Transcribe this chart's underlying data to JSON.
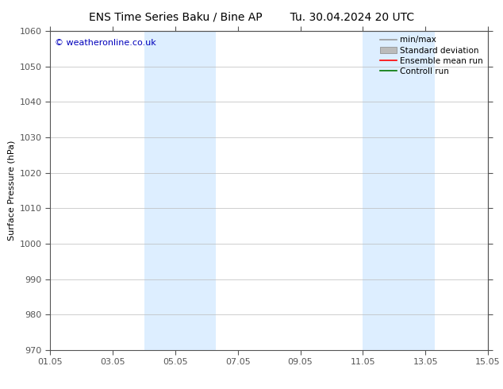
{
  "title_left": "ENS Time Series Baku / Bine AP",
  "title_right": "Tu. 30.04.2024 20 UTC",
  "ylabel": "Surface Pressure (hPa)",
  "ylim": [
    970,
    1060
  ],
  "yticks": [
    970,
    980,
    990,
    1000,
    1010,
    1020,
    1030,
    1040,
    1050,
    1060
  ],
  "xlim": [
    0,
    14
  ],
  "xtick_labels": [
    "01.05",
    "03.05",
    "05.05",
    "07.05",
    "09.05",
    "11.05",
    "13.05",
    "15.05"
  ],
  "xtick_positions": [
    0,
    2,
    4,
    6,
    8,
    10,
    12,
    14
  ],
  "shaded_bands": [
    {
      "x_start": 3.0,
      "x_end": 5.3
    },
    {
      "x_start": 10.0,
      "x_end": 12.3
    }
  ],
  "shaded_color": "#ddeeff",
  "watermark_text": "© weatheronline.co.uk",
  "watermark_color": "#0000bb",
  "bg_color": "#ffffff",
  "spine_color": "#555555",
  "tick_color": "#555555",
  "grid_color": "#bbbbbb",
  "legend_items": [
    {
      "label": "min/max",
      "color": "#999999",
      "style": "line"
    },
    {
      "label": "Standard deviation",
      "color": "#bbbbbb",
      "style": "band"
    },
    {
      "label": "Ensemble mean run",
      "color": "#ff0000",
      "style": "line"
    },
    {
      "label": "Controll run",
      "color": "#007700",
      "style": "line"
    }
  ],
  "title_fontsize": 10,
  "axis_label_fontsize": 8,
  "tick_fontsize": 8,
  "legend_fontsize": 7.5,
  "watermark_fontsize": 8
}
